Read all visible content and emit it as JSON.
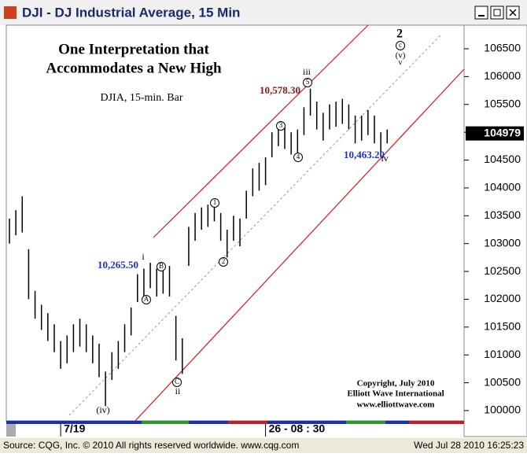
{
  "window": {
    "title": "DJI - DJ Industrial Average, 15 Min"
  },
  "chart_data": {
    "type": "ohlc",
    "categories": [
      null,
      null,
      null,
      null,
      null,
      null,
      null,
      null,
      "7/19",
      null,
      null,
      null,
      null,
      null,
      null,
      null,
      null,
      null,
      null,
      null,
      null,
      null,
      null,
      null,
      null,
      null,
      null,
      null,
      null,
      null,
      null,
      null,
      null,
      null,
      null,
      null,
      null,
      null,
      null,
      null,
      "26 - 08 : 30",
      null,
      null,
      null,
      null,
      null,
      null,
      null,
      null,
      null,
      null,
      null,
      null,
      null,
      null,
      null,
      null,
      null,
      null,
      null
    ],
    "high": [
      103450,
      103600,
      103850,
      102900,
      102150,
      101900,
      101750,
      101550,
      101250,
      101350,
      101550,
      101650,
      101550,
      101350,
      101200,
      100700,
      101050,
      101250,
      101550,
      101850,
      102450,
      102550,
      102655,
      102550,
      102600,
      102600,
      101700,
      101300,
      103300,
      103550,
      103650,
      103700,
      103800,
      103550,
      103250,
      103500,
      103450,
      103950,
      104350,
      104450,
      104550,
      105000,
      105150,
      105100,
      105000,
      105050,
      105450,
      105783,
      105550,
      105350,
      105500,
      105550,
      105600,
      105500,
      105300,
      105300,
      105400,
      105300,
      105000,
      105050
    ],
    "low": [
      103000,
      103150,
      103200,
      102000,
      101650,
      101450,
      101250,
      101050,
      100750,
      100850,
      101050,
      101150,
      101050,
      100850,
      100600,
      100080,
      100550,
      100750,
      101050,
      101350,
      101950,
      102050,
      102200,
      102050,
      102100,
      102050,
      100900,
      100660,
      102600,
      103050,
      103250,
      103300,
      103400,
      103050,
      102750,
      103050,
      102950,
      103450,
      103850,
      103950,
      104050,
      104550,
      104750,
      104700,
      104600,
      104600,
      104950,
      105300,
      105050,
      104850,
      105050,
      105100,
      105150,
      105050,
      104800,
      104850,
      104950,
      104800,
      104632,
      104800
    ],
    "color": "#000000",
    "last": 104979,
    "ylim": [
      99816,
      106924
    ],
    "yticks": [
      100000,
      100500,
      101000,
      101500,
      102000,
      102500,
      103000,
      103500,
      104000,
      104500,
      105000,
      105500,
      106000,
      106500
    ],
    "annotations": [
      "One Interpretation that",
      "Accommodates a New High",
      "DJIA, 15-min. Bar",
      "10,578.30",
      "iii",
      "5",
      "10,265.50",
      "i",
      "A",
      "B",
      "(iv)",
      "C",
      "ii",
      "1",
      "2",
      "3",
      "4",
      "10,463.20",
      "iv",
      "2",
      "c",
      "(v)",
      "v",
      "Copyright, July 2010",
      "Elliott Wave International",
      "www.elliottwave.com"
    ]
  },
  "status_bar": {
    "source": "Source: CQG, Inc. © 2010 All rights reserved worldwide. www.cqg.com",
    "timestamp": "Wed Jul 28 2010 16:25:23"
  }
}
